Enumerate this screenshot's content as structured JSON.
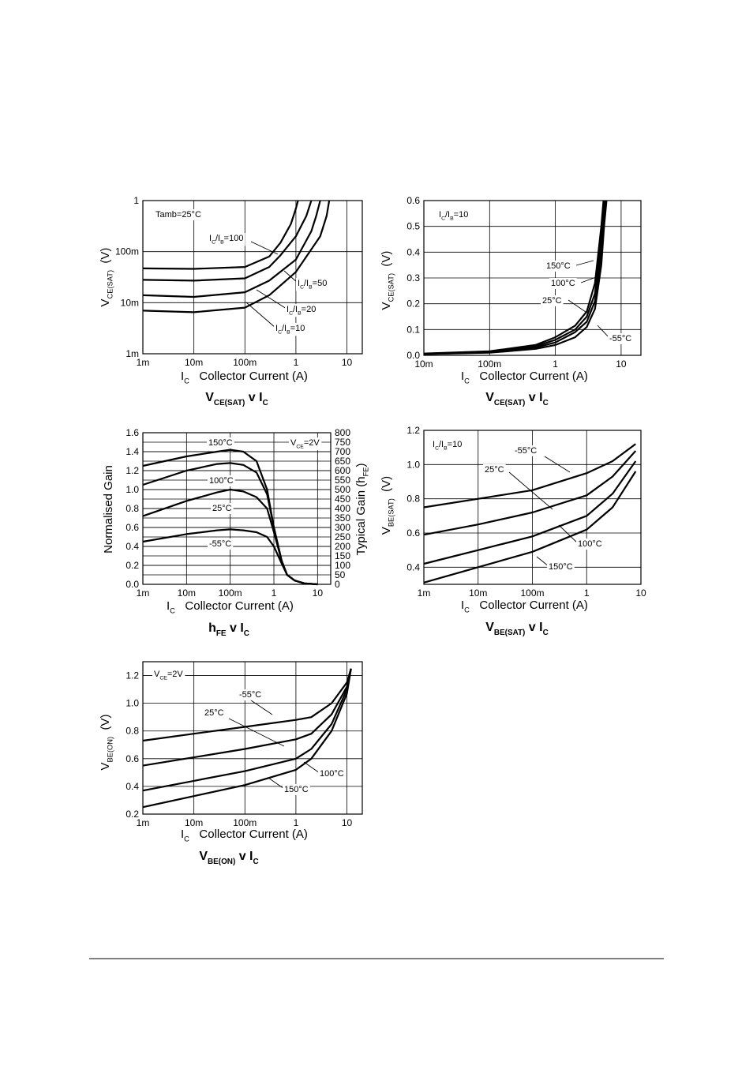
{
  "chart_data": [
    {
      "type": "line",
      "title": [
        "V",
        "CE(SAT)",
        " v I",
        "C"
      ],
      "xlabel": [
        "I",
        "C",
        "   Collector Current (A)"
      ],
      "ylabel": [
        "V",
        "CE(SAT)",
        "  (V)"
      ],
      "xlog": true,
      "ylog": true,
      "grid": true,
      "color": "#000000",
      "xlim": [
        0.001,
        20
      ],
      "xticks": [
        {
          "value": 0.001,
          "label": "1m"
        },
        {
          "value": 0.01,
          "label": "10m"
        },
        {
          "value": 0.1,
          "label": "100m"
        },
        1,
        10
      ],
      "ylim": [
        0.001,
        1
      ],
      "yticks": [
        {
          "value": 0.001,
          "label": "1m"
        },
        {
          "value": 0.01,
          "label": "10m"
        },
        {
          "value": 0.1,
          "label": "100m"
        },
        1
      ],
      "annotations": [
        [
          "Tamb=25°C"
        ],
        [
          "I",
          "C",
          "/I",
          "B",
          "=100"
        ],
        [
          "I",
          "C",
          "/I",
          "B",
          "=50"
        ],
        [
          "I",
          "C",
          "/I",
          "B",
          "=20"
        ],
        [
          "I",
          "C",
          "/I",
          "B",
          "=10"
        ]
      ],
      "series": [
        {
          "x": [
            0.001,
            0.01,
            0.1,
            0.3,
            0.5,
            0.8,
            1,
            1.1
          ],
          "values": [
            0.047,
            0.046,
            0.05,
            0.08,
            0.15,
            0.35,
            0.7,
            1
          ]
        },
        {
          "x": [
            0.001,
            0.01,
            0.1,
            0.3,
            0.5,
            1,
            1.6,
            2
          ],
          "values": [
            0.028,
            0.027,
            0.03,
            0.05,
            0.085,
            0.2,
            0.5,
            1
          ]
        },
        {
          "x": [
            0.001,
            0.01,
            0.1,
            0.3,
            1,
            2,
            2.5,
            3
          ],
          "values": [
            0.014,
            0.013,
            0.016,
            0.027,
            0.07,
            0.25,
            0.5,
            1
          ]
        },
        {
          "x": [
            0.001,
            0.01,
            0.1,
            0.3,
            1,
            3,
            4,
            4.5
          ],
          "values": [
            0.007,
            0.0065,
            0.008,
            0.014,
            0.04,
            0.2,
            0.5,
            1
          ]
        }
      ]
    },
    {
      "type": "line",
      "title": [
        "V",
        "CE(SAT)",
        " v I",
        "C"
      ],
      "xlabel": [
        "I",
        "C",
        "   Collector Current (A)"
      ],
      "ylabel": [
        "V",
        "CE(SAT)",
        "  (V)"
      ],
      "xlog": true,
      "ylog": false,
      "grid": true,
      "color": "#000000",
      "xlim": [
        0.01,
        20
      ],
      "xticks": [
        {
          "value": 0.01,
          "label": "10m"
        },
        {
          "value": 0.1,
          "label": "100m"
        },
        1,
        10
      ],
      "ylim": [
        0,
        0.6
      ],
      "yticks": [
        {
          "value": 0,
          "label": "0.0"
        },
        0.1,
        0.2,
        0.3,
        0.4,
        0.5,
        0.6
      ],
      "annotations": [
        [
          "I",
          "C",
          "/I",
          "B",
          "=10"
        ],
        [
          "150°C"
        ],
        [
          "100°C"
        ],
        [
          "25°C"
        ],
        [
          "-55°C"
        ]
      ],
      "series": [
        {
          "x": [
            0.01,
            0.1,
            0.5,
            1,
            2,
            3,
            4,
            5,
            5.5,
            6
          ],
          "values": [
            0.005,
            0.01,
            0.025,
            0.04,
            0.07,
            0.11,
            0.18,
            0.35,
            0.5,
            0.6
          ]
        },
        {
          "x": [
            0.01,
            0.1,
            0.5,
            1,
            2,
            3,
            4,
            5,
            5.6,
            5.8
          ],
          "values": [
            0.005,
            0.012,
            0.03,
            0.05,
            0.09,
            0.13,
            0.21,
            0.4,
            0.55,
            0.6
          ]
        },
        {
          "x": [
            0.01,
            0.1,
            0.5,
            1,
            2,
            3,
            4,
            5,
            5.6
          ],
          "values": [
            0.006,
            0.014,
            0.035,
            0.06,
            0.1,
            0.15,
            0.24,
            0.45,
            0.6
          ]
        },
        {
          "x": [
            0.01,
            0.1,
            0.5,
            1,
            2,
            3,
            4,
            5,
            5.4
          ],
          "values": [
            0.007,
            0.016,
            0.04,
            0.07,
            0.115,
            0.17,
            0.28,
            0.5,
            0.6
          ]
        }
      ]
    },
    {
      "type": "line",
      "title": [
        "h",
        "FE",
        " v I",
        "C"
      ],
      "xlabel": [
        "I",
        "C",
        "   Collector Current (A)"
      ],
      "ylabel": [
        "Normalised Gain"
      ],
      "y2label": [
        "Typical Gain (h",
        "FE",
        ")"
      ],
      "xlog": true,
      "ylog": false,
      "grid": true,
      "color": "#000000",
      "xlim": [
        0.001,
        20
      ],
      "xticks": [
        {
          "value": 0.001,
          "label": "1m"
        },
        {
          "value": 0.01,
          "label": "10m"
        },
        {
          "value": 0.1,
          "label": "100m"
        },
        1,
        10
      ],
      "ylim": [
        0,
        1.6
      ],
      "yticks": [
        {
          "value": 0,
          "label": "0.0"
        },
        0.2,
        0.4,
        0.6,
        0.8,
        {
          "value": 1,
          "label": "1.0"
        },
        1.2,
        1.4,
        1.6
      ],
      "y2lim": [
        0,
        800
      ],
      "y2ticks": [
        0,
        50,
        100,
        150,
        200,
        250,
        300,
        350,
        400,
        450,
        500,
        550,
        600,
        650,
        700,
        750,
        800
      ],
      "annotations": [
        [
          "150°C"
        ],
        [
          "V",
          "CE",
          "=2V"
        ],
        [
          "100°C"
        ],
        [
          "25°C"
        ],
        [
          "-55°C"
        ]
      ],
      "series": [
        {
          "x": [
            0.001,
            0.01,
            0.05,
            0.1,
            0.2,
            0.4,
            0.7,
            1,
            1.5,
            2,
            3,
            5,
            10
          ],
          "values": [
            1.25,
            1.35,
            1.4,
            1.42,
            1.4,
            1.3,
            1.0,
            0.6,
            0.25,
            0.1,
            0.04,
            0.01,
            0
          ]
        },
        {
          "x": [
            0.001,
            0.01,
            0.05,
            0.1,
            0.2,
            0.4,
            0.7,
            1,
            1.5,
            2,
            3,
            5,
            10
          ],
          "values": [
            1.05,
            1.2,
            1.27,
            1.28,
            1.26,
            1.18,
            0.95,
            0.6,
            0.25,
            0.1,
            0.04,
            0.01,
            0
          ]
        },
        {
          "x": [
            0.001,
            0.01,
            0.05,
            0.1,
            0.2,
            0.4,
            0.7,
            1,
            1.5,
            2,
            3,
            5,
            10
          ],
          "values": [
            0.72,
            0.88,
            0.97,
            1.0,
            0.98,
            0.92,
            0.8,
            0.55,
            0.25,
            0.1,
            0.04,
            0.01,
            0
          ]
        },
        {
          "x": [
            0.001,
            0.01,
            0.05,
            0.1,
            0.2,
            0.4,
            0.7,
            1,
            1.5,
            2,
            3,
            5,
            10
          ],
          "values": [
            0.45,
            0.53,
            0.57,
            0.58,
            0.57,
            0.55,
            0.5,
            0.4,
            0.22,
            0.1,
            0.04,
            0.01,
            0
          ]
        }
      ]
    },
    {
      "type": "line",
      "title": [
        "V",
        "BE(SAT)",
        " v I",
        "C"
      ],
      "xlabel": [
        "I",
        "C",
        "   Collector Current (A)"
      ],
      "ylabel": [
        "V",
        "BE(SAT)",
        "  (V)"
      ],
      "xlog": true,
      "ylog": false,
      "grid": true,
      "color": "#000000",
      "xlim": [
        0.001,
        10
      ],
      "xticks": [
        {
          "value": 0.001,
          "label": "1m"
        },
        {
          "value": 0.01,
          "label": "10m"
        },
        {
          "value": 0.1,
          "label": "100m"
        },
        1,
        10
      ],
      "ylim": [
        0.3,
        1.2
      ],
      "yticks": [
        0.4,
        0.6,
        0.8,
        {
          "value": 1,
          "label": "1.0"
        },
        1.2
      ],
      "annotations": [
        [
          "I",
          "C",
          "/I",
          "B",
          "=10"
        ],
        [
          "-55°C"
        ],
        [
          "25°C"
        ],
        [
          "100°C"
        ],
        [
          "150°C"
        ]
      ],
      "series": [
        {
          "x": [
            0.001,
            0.01,
            0.1,
            1,
            3,
            8
          ],
          "values": [
            0.75,
            0.8,
            0.85,
            0.95,
            1.02,
            1.12
          ]
        },
        {
          "x": [
            0.001,
            0.01,
            0.1,
            1,
            3,
            8
          ],
          "values": [
            0.59,
            0.65,
            0.72,
            0.82,
            0.93,
            1.08
          ]
        },
        {
          "x": [
            0.001,
            0.01,
            0.1,
            1,
            3,
            8
          ],
          "values": [
            0.42,
            0.5,
            0.58,
            0.7,
            0.83,
            1.02
          ]
        },
        {
          "x": [
            0.001,
            0.01,
            0.1,
            1,
            3,
            8
          ],
          "values": [
            0.31,
            0.4,
            0.49,
            0.62,
            0.75,
            0.96
          ]
        }
      ]
    },
    {
      "type": "line",
      "title": [
        "V",
        "BE(ON)",
        " v I",
        "C"
      ],
      "xlabel": [
        "I",
        "C",
        "   Collector Current (A)"
      ],
      "ylabel": [
        "V",
        "BE(ON)",
        "  (V)"
      ],
      "xlog": true,
      "ylog": false,
      "grid": true,
      "color": "#000000",
      "xlim": [
        0.001,
        20
      ],
      "xticks": [
        {
          "value": 0.001,
          "label": "1m"
        },
        {
          "value": 0.01,
          "label": "10m"
        },
        {
          "value": 0.1,
          "label": "100m"
        },
        1,
        10
      ],
      "ylim": [
        0.2,
        1.3
      ],
      "yticks": [
        0.2,
        0.4,
        0.6,
        0.8,
        {
          "value": 1,
          "label": "1.0"
        },
        1.2
      ],
      "annotations": [
        [
          "V",
          "CE",
          "=2V"
        ],
        [
          "-55°C"
        ],
        [
          "25°C"
        ],
        [
          "100°C"
        ],
        [
          "150°C"
        ]
      ],
      "series": [
        {
          "x": [
            0.001,
            0.01,
            0.1,
            1,
            2,
            5,
            10,
            12
          ],
          "values": [
            0.73,
            0.78,
            0.83,
            0.88,
            0.9,
            1.0,
            1.15,
            1.25
          ]
        },
        {
          "x": [
            0.001,
            0.01,
            0.1,
            1,
            2,
            5,
            10,
            12
          ],
          "values": [
            0.55,
            0.61,
            0.67,
            0.74,
            0.78,
            0.92,
            1.12,
            1.25
          ]
        },
        {
          "x": [
            0.001,
            0.01,
            0.1,
            1,
            2,
            5,
            10,
            12
          ],
          "values": [
            0.37,
            0.44,
            0.51,
            0.6,
            0.67,
            0.85,
            1.1,
            1.25
          ]
        },
        {
          "x": [
            0.001,
            0.01,
            0.1,
            1,
            2,
            5,
            10,
            12
          ],
          "values": [
            0.25,
            0.33,
            0.41,
            0.52,
            0.6,
            0.8,
            1.07,
            1.25
          ]
        }
      ]
    }
  ]
}
